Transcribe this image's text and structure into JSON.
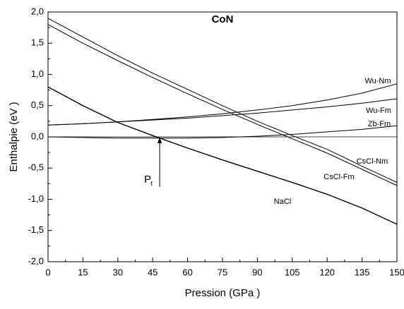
{
  "chart_data": {
    "type": "line",
    "title": "CoN",
    "x_label": "Pression   (GPa )",
    "y_label": "Enthalpie  (eV )",
    "x": [
      0,
      15,
      30,
      45,
      60,
      75,
      90,
      105,
      120,
      135,
      150
    ],
    "series": [
      {
        "name": "NaCl",
        "color": "#000000",
        "values": [
          0.8,
          0.5,
          0.23,
          0.02,
          -0.18,
          -0.37,
          -0.55,
          -0.73,
          -0.92,
          -1.14,
          -1.4
        ]
      },
      {
        "name": "CsCl-Nm",
        "color": "#000000",
        "values": [
          1.9,
          1.6,
          1.3,
          1.02,
          0.76,
          0.5,
          0.25,
          0.02,
          -0.2,
          -0.47,
          -0.73
        ]
      },
      {
        "name": "CsCl-Fm",
        "color": "#000000",
        "values": [
          1.8,
          1.5,
          1.22,
          0.95,
          0.69,
          0.44,
          0.2,
          -0.03,
          -0.26,
          -0.52,
          -0.78
        ]
      },
      {
        "name": "Wu-Nm",
        "color": "#000000",
        "values": [
          0.19,
          0.21,
          0.24,
          0.28,
          0.32,
          0.37,
          0.43,
          0.5,
          0.59,
          0.7,
          0.85
        ]
      },
      {
        "name": "Wu-Fm",
        "color": "#000000",
        "values": [
          0.19,
          0.21,
          0.24,
          0.27,
          0.3,
          0.34,
          0.38,
          0.43,
          0.48,
          0.54,
          0.61
        ]
      },
      {
        "name": "Zb-Fm",
        "color": "#000000",
        "values": [
          0,
          -0.01,
          -0.02,
          -0.02,
          -0.02,
          -0.01,
          0.01,
          0.04,
          0.08,
          0.12,
          0.18
        ]
      }
    ],
    "xlim": [
      0,
      150
    ],
    "xticks": [
      0,
      15,
      30,
      45,
      60,
      75,
      90,
      105,
      120,
      135,
      150
    ],
    "ylim": [
      -2,
      2
    ],
    "yticks": [
      {
        "value": -2,
        "label": "-2,0"
      },
      {
        "value": -1.5,
        "label": "-1,5"
      },
      {
        "value": -1,
        "label": "-1,0"
      },
      {
        "value": -0.5,
        "label": "-0,5"
      },
      {
        "value": 0,
        "label": "0,0"
      },
      {
        "value": 0.5,
        "label": "0,5"
      },
      {
        "value": 1,
        "label": "1,0"
      },
      {
        "value": 1.5,
        "label": "1,5"
      },
      {
        "value": 2,
        "label": "2,0"
      }
    ],
    "zero_line": true,
    "annotation": {
      "text": "P",
      "subscript": "t",
      "x": 48,
      "y": [
        -0.8,
        0
      ]
    }
  }
}
